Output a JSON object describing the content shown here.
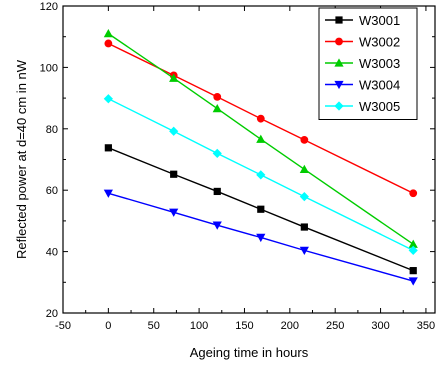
{
  "chart_data": {
    "type": "line",
    "title": "",
    "xlabel": "Ageing time in hours",
    "ylabel": "Reflected power at d=40 cm in nW",
    "xlim": [
      -50,
      360
    ],
    "ylim": [
      20,
      120
    ],
    "xticks": [
      -50,
      0,
      50,
      100,
      150,
      200,
      250,
      300,
      350
    ],
    "yticks": [
      20,
      40,
      60,
      80,
      100,
      120
    ],
    "grid": false,
    "legend_position": "top-right",
    "x": [
      0,
      72,
      120,
      168,
      216,
      336
    ],
    "series": [
      {
        "name": "W3001",
        "color": "#000000",
        "marker": "square",
        "values": [
          73.8,
          65.2,
          59.6,
          53.8,
          48.0,
          33.8
        ]
      },
      {
        "name": "W3002",
        "color": "#ff0000",
        "marker": "circle",
        "values": [
          107.8,
          97.4,
          90.4,
          83.3,
          76.4,
          59.0
        ]
      },
      {
        "name": "W3003",
        "color": "#00cc00",
        "marker": "triangle-up",
        "values": [
          111.0,
          96.5,
          86.6,
          76.6,
          66.8,
          42.4
        ]
      },
      {
        "name": "W3004",
        "color": "#0000ff",
        "marker": "triangle-down",
        "values": [
          59.0,
          52.8,
          48.6,
          44.6,
          40.4,
          30.4
        ]
      },
      {
        "name": "W3005",
        "color": "#00ffff",
        "marker": "diamond",
        "values": [
          89.8,
          79.2,
          72.0,
          65.0,
          57.9,
          40.4
        ]
      }
    ]
  }
}
